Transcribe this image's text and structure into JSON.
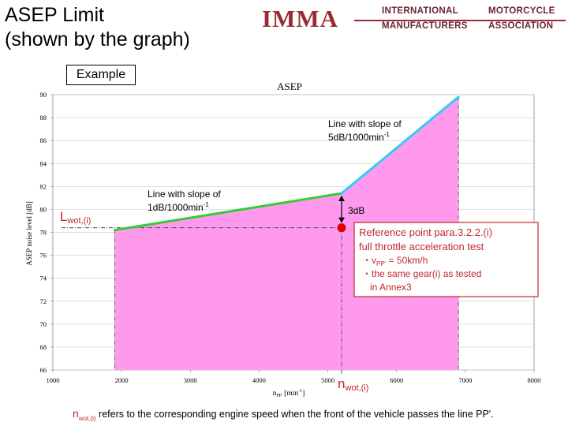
{
  "title": "ASEP Limit\n(shown by the graph)",
  "logo": {
    "imma": "IMMA",
    "line1_left": "INTERNATIONAL",
    "line1_right": "MOTORCYCLE",
    "line2_left": "MANUFACTURERS",
    "line2_right": "ASSOCIATION",
    "color": "#9a2b34"
  },
  "example_label": "Example",
  "footnote": {
    "n": "n",
    "n_sub": "wot,(i)",
    "text": " refers to the corresponding engine speed when the front of the vehicle passes the line PP'."
  },
  "chart_data": {
    "type": "line",
    "title": "ASEP",
    "xlabel": "n",
    "xlabel_sub": "PP",
    "xlabel_unit": "[min",
    "xlabel_exp": "-1",
    "xlabel_close": "]",
    "ylabel": "ASEP noise level [dB]",
    "xlim": [
      1000,
      8000
    ],
    "ylim": [
      66,
      90
    ],
    "xticks": [
      1000,
      2000,
      3000,
      4000,
      5000,
      6000,
      7000,
      8000
    ],
    "yticks": [
      66,
      68,
      70,
      72,
      74,
      76,
      78,
      80,
      82,
      84,
      86,
      88,
      90
    ],
    "grid": true,
    "segments": [
      {
        "x": [
          1900,
          5200
        ],
        "y": [
          78.2,
          81.4
        ],
        "color": "#33cc33"
      },
      {
        "x": [
          5200,
          6900
        ],
        "y": [
          81.4,
          89.8
        ],
        "color": "#33ccee"
      }
    ],
    "fill": {
      "x": [
        1900,
        5200,
        6900
      ],
      "y": [
        78.2,
        81.4,
        89.8
      ],
      "color": "#ff99ee"
    },
    "reference_point": {
      "x": 5200,
      "y": 78.4,
      "color": "#dd0000"
    },
    "lwot_level": 78.4,
    "annotations": {
      "slope_upper_1": "Line with slope of",
      "slope_upper_2": "5dB/1000min",
      "slope_upper_exp": "-1",
      "slope_lower_1": "Line with slope of",
      "slope_lower_2": "1dB/1000min",
      "slope_lower_exp": "-1",
      "delta": "3dB",
      "lwot_main": "L",
      "lwot_sub": "wot,(i)",
      "nwot_main": "n",
      "nwot_sub": "wot,(i)",
      "ref_line1": "Reference point  para.3.2.2.(i)",
      "ref_line2": "full throttle acceleration test",
      "ref_line3_a": "・v",
      "ref_line3_sub": "PP'",
      "ref_line3_b": " = 50km/h",
      "ref_line4": "・the same gear(i) as tested",
      "ref_line5": "in Annex3"
    }
  }
}
